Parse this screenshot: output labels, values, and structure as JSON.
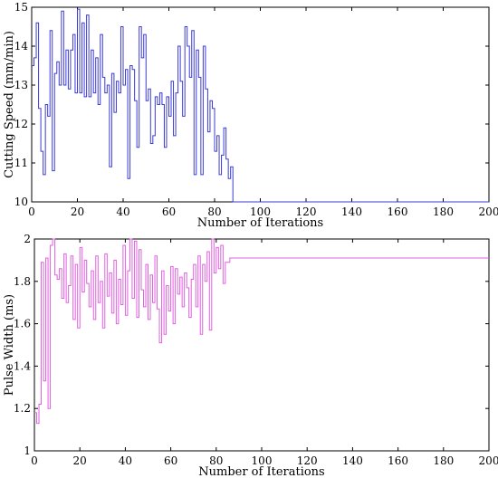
{
  "chart_data": [
    {
      "type": "line",
      "title": "",
      "xlabel": "Number of Iterations",
      "ylabel": "Cutting Speed (mm/min)",
      "xlim": [
        0,
        200
      ],
      "ylim": [
        10,
        15
      ],
      "xticks": [
        0,
        20,
        40,
        60,
        80,
        100,
        120,
        140,
        160,
        180,
        200
      ],
      "yticks": [
        10,
        11,
        12,
        13,
        14,
        15
      ],
      "grid": false,
      "step": true,
      "color": "#3b3bd6",
      "series": [
        {
          "values": [
            13.5,
            13.7,
            14.6,
            12.4,
            11.3,
            10.7,
            12.5,
            12.2,
            14.4,
            10.8,
            13.3,
            13.6,
            13.0,
            14.9,
            13.0,
            13.9,
            12.9,
            13.9,
            14.3,
            12.8,
            14.95,
            12.8,
            14.6,
            12.7,
            14.8,
            12.7,
            13.9,
            12.8,
            13.7,
            12.5,
            14.3,
            13.2,
            12.8,
            13.0,
            10.9,
            13.3,
            12.3,
            13.1,
            12.8,
            14.5,
            13.0,
            13.4,
            10.6,
            13.5,
            13.4,
            12.6,
            11.4,
            14.5,
            13.7,
            14.3,
            12.6,
            12.9,
            11.5,
            11.7,
            12.7,
            12.5,
            12.8,
            12.5,
            11.4,
            12.7,
            12.2,
            13.1,
            11.7,
            12.8,
            14.0,
            13.1,
            12.2,
            14.5,
            14.0,
            13.2,
            14.4,
            10.7,
            13.9,
            13.2,
            10.7,
            14.0,
            12.9,
            11.8,
            12.6,
            12.4,
            11.3,
            11.7,
            10.7,
            11.2,
            11.9,
            11.1,
            10.6,
            10.9,
            10.0,
            10.0,
            10.0,
            10.0,
            10.0,
            10.0,
            10.0,
            10.0,
            10.0,
            10.0,
            10.0,
            10.0,
            10.0,
            10.0,
            10.0,
            10.0,
            10.0,
            10.0,
            10.0,
            10.0,
            10.0,
            10.0,
            10.0,
            10.0,
            10.0,
            10.0,
            10.0,
            10.0,
            10.0,
            10.0,
            10.0,
            10.0,
            10.0,
            10.0,
            10.0,
            10.0,
            10.0,
            10.0,
            10.0,
            10.0,
            10.0,
            10.0,
            10.0,
            10.0,
            10.0,
            10.0,
            10.0,
            10.0,
            10.0,
            10.0,
            10.0,
            10.0,
            10.0,
            10.0,
            10.0,
            10.0,
            10.0,
            10.0,
            10.0,
            10.0,
            10.0,
            10.0,
            10.0,
            10.0,
            10.0,
            10.0,
            10.0,
            10.0,
            10.0,
            10.0,
            10.0,
            10.0,
            10.0,
            10.0,
            10.0,
            10.0,
            10.0,
            10.0,
            10.0,
            10.0,
            10.0,
            10.0,
            10.0,
            10.0,
            10.0,
            10.0,
            10.0,
            10.0,
            10.0,
            10.0,
            10.0,
            10.0,
            10.0,
            10.0,
            10.0,
            10.0,
            10.0,
            10.0,
            10.0,
            10.0,
            10.0,
            10.0,
            10.0,
            10.0,
            10.0,
            10.0,
            10.0,
            10.0,
            10.0,
            10.0,
            10.0,
            10.0,
            10.0,
            10.0,
            10.0,
            10.0,
            10.0,
            10.0,
            10.0,
            10.0,
            10.0
          ]
        }
      ]
    },
    {
      "type": "line",
      "title": "",
      "xlabel": "Number of Iterations",
      "ylabel": "Pulse Width (ms)",
      "xlim": [
        0,
        200
      ],
      "ylim": [
        1,
        2
      ],
      "xticks": [
        0,
        20,
        40,
        60,
        80,
        100,
        120,
        140,
        160,
        180,
        200
      ],
      "yticks": [
        1,
        1.2,
        1.4,
        1.6,
        1.8,
        2
      ],
      "grid": false,
      "step": true,
      "color": "#e060e0",
      "series": [
        {
          "values": [
            1.18,
            1.13,
            1.22,
            1.89,
            1.33,
            1.91,
            1.2,
            1.97,
            2.0,
            1.83,
            1.81,
            1.86,
            1.72,
            1.93,
            1.7,
            1.78,
            1.92,
            1.62,
            1.88,
            1.58,
            1.96,
            1.75,
            1.9,
            1.79,
            1.68,
            1.85,
            1.62,
            1.92,
            1.7,
            1.8,
            1.58,
            1.93,
            1.73,
            1.84,
            1.65,
            1.9,
            1.6,
            1.81,
            1.69,
            1.97,
            1.64,
            1.85,
            2.0,
            1.72,
            1.99,
            1.63,
            1.95,
            1.76,
            1.68,
            1.88,
            1.62,
            1.83,
            1.7,
            1.92,
            1.67,
            1.51,
            1.85,
            1.55,
            1.78,
            1.66,
            1.87,
            1.6,
            1.86,
            1.74,
            1.82,
            1.68,
            1.84,
            1.77,
            1.63,
            1.81,
            1.88,
            1.68,
            1.92,
            1.55,
            1.88,
            1.8,
            1.94,
            1.57,
            2.0,
            1.84,
            1.96,
            1.86,
            1.97,
            1.79,
            1.89,
            1.89,
            1.91,
            1.91,
            1.91,
            1.91,
            1.91,
            1.91,
            1.91,
            1.91,
            1.91,
            1.91,
            1.91,
            1.91,
            1.91,
            1.91,
            1.91,
            1.91,
            1.91,
            1.91,
            1.91,
            1.91,
            1.91,
            1.91,
            1.91,
            1.91,
            1.91,
            1.91,
            1.91,
            1.91,
            1.91,
            1.91,
            1.91,
            1.91,
            1.91,
            1.91,
            1.91,
            1.91,
            1.91,
            1.91,
            1.91,
            1.91,
            1.91,
            1.91,
            1.91,
            1.91,
            1.91,
            1.91,
            1.91,
            1.91,
            1.91,
            1.91,
            1.91,
            1.91,
            1.91,
            1.91,
            1.91,
            1.91,
            1.91,
            1.91,
            1.91,
            1.91,
            1.91,
            1.91,
            1.91,
            1.91,
            1.91,
            1.91,
            1.91,
            1.91,
            1.91,
            1.91,
            1.91,
            1.91,
            1.91,
            1.91,
            1.91,
            1.91,
            1.91,
            1.91,
            1.91,
            1.91,
            1.91,
            1.91,
            1.91,
            1.91,
            1.91,
            1.91,
            1.91,
            1.91,
            1.91,
            1.91,
            1.91,
            1.91,
            1.91,
            1.91,
            1.91,
            1.91,
            1.91,
            1.91,
            1.91,
            1.91,
            1.91,
            1.91,
            1.91,
            1.91,
            1.91,
            1.91,
            1.91,
            1.91,
            1.91,
            1.91,
            1.91,
            1.91,
            1.91,
            1.91,
            1.91,
            1.91,
            1.91,
            1.91,
            1.91,
            1.91
          ]
        }
      ]
    }
  ]
}
